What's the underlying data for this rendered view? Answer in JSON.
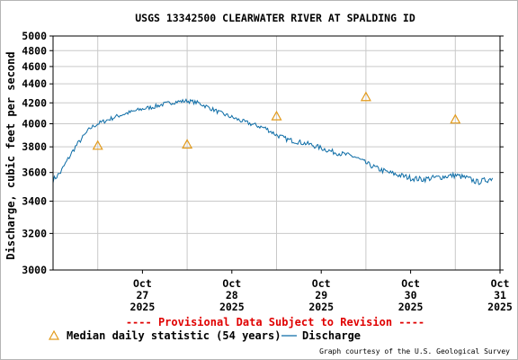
{
  "chart_data": {
    "type": "line",
    "title": "USGS 13342500 CLEARWATER RIVER AT SPALDING ID",
    "ylabel": "Discharge, cubic feet per second",
    "xlabel": "",
    "ylim": [
      3000,
      5000
    ],
    "y_ticks": [
      3000,
      3200,
      3400,
      3600,
      3800,
      4000,
      4200,
      4400,
      4600,
      4800,
      5000
    ],
    "y_ticks_labeled": [
      3000,
      3200,
      3400,
      3600,
      3800,
      4000,
      4200,
      4400,
      4600,
      4800,
      5000
    ],
    "y_ticks_dense": [
      3400,
      3600,
      3800,
      4000,
      4200,
      4400,
      4600,
      4800,
      5000
    ],
    "x_range": [
      "2025-10-26T12:00",
      "2025-10-31T12:00"
    ],
    "x_ticks": [
      {
        "date": "2025-10-27",
        "lines": [
          "Oct",
          "27",
          "2025"
        ]
      },
      {
        "date": "2025-10-28",
        "lines": [
          "Oct",
          "28",
          "2025"
        ]
      },
      {
        "date": "2025-10-29",
        "lines": [
          "Oct",
          "29",
          "2025"
        ]
      },
      {
        "date": "2025-10-30",
        "lines": [
          "Oct",
          "30",
          "2025"
        ]
      },
      {
        "date": "2025-10-31",
        "lines": [
          "Oct",
          "31",
          "2025"
        ]
      }
    ],
    "grid": true,
    "series": [
      {
        "name": "Discharge",
        "color": "#0c6ca6",
        "points": [
          [
            "2025-10-26T12:00",
            3545
          ],
          [
            "2025-10-26T14:00",
            3600
          ],
          [
            "2025-10-26T16:00",
            3700
          ],
          [
            "2025-10-26T18:00",
            3800
          ],
          [
            "2025-10-26T20:00",
            3880
          ],
          [
            "2025-10-26T22:00",
            3960
          ],
          [
            "2025-10-27T00:00",
            4000
          ],
          [
            "2025-10-27T03:00",
            4040
          ],
          [
            "2025-10-27T06:00",
            4080
          ],
          [
            "2025-10-27T09:00",
            4110
          ],
          [
            "2025-10-27T12:00",
            4140
          ],
          [
            "2025-10-27T15:00",
            4160
          ],
          [
            "2025-10-27T18:00",
            4190
          ],
          [
            "2025-10-27T21:00",
            4210
          ],
          [
            "2025-10-28T00:00",
            4220
          ],
          [
            "2025-10-28T03:00",
            4200
          ],
          [
            "2025-10-28T06:00",
            4150
          ],
          [
            "2025-10-28T09:00",
            4100
          ],
          [
            "2025-10-28T12:00",
            4060
          ],
          [
            "2025-10-28T15:00",
            4020
          ],
          [
            "2025-10-28T18:00",
            3990
          ],
          [
            "2025-10-28T21:00",
            3960
          ],
          [
            "2025-10-29T00:00",
            3900
          ],
          [
            "2025-10-29T03:00",
            3860
          ],
          [
            "2025-10-29T06:00",
            3840
          ],
          [
            "2025-10-29T09:00",
            3820
          ],
          [
            "2025-10-29T12:00",
            3790
          ],
          [
            "2025-10-29T15:00",
            3760
          ],
          [
            "2025-10-29T18:00",
            3740
          ],
          [
            "2025-10-29T21:00",
            3720
          ],
          [
            "2025-10-30T00:00",
            3670
          ],
          [
            "2025-10-30T03:00",
            3630
          ],
          [
            "2025-10-30T06:00",
            3600
          ],
          [
            "2025-10-30T09:00",
            3580
          ],
          [
            "2025-10-30T12:00",
            3560
          ],
          [
            "2025-10-30T15:00",
            3550
          ],
          [
            "2025-10-30T18:00",
            3560
          ],
          [
            "2025-10-30T21:00",
            3570
          ],
          [
            "2025-10-31T00:00",
            3580
          ],
          [
            "2025-10-31T03:00",
            3560
          ],
          [
            "2025-10-31T06:00",
            3530
          ],
          [
            "2025-10-31T09:00",
            3550
          ],
          [
            "2025-10-31T10:00",
            3560
          ]
        ]
      },
      {
        "name": "Median daily statistic (54 years)",
        "color": "#e29a1a",
        "marker": "triangle",
        "points": [
          [
            "2025-10-27T00:00",
            3810
          ],
          [
            "2025-10-28T00:00",
            3820
          ],
          [
            "2025-10-29T00:00",
            4070
          ],
          [
            "2025-10-30T00:00",
            4260
          ],
          [
            "2025-10-31T00:00",
            4040
          ]
        ]
      }
    ],
    "annotation": "---- Provisional Data Subject to Revision ----",
    "annotation_color": "#e00000",
    "legend": {
      "placement": "bottom",
      "median_label": "Median daily statistic (54 years)",
      "discharge_label": "Discharge"
    },
    "credit": "Graph courtesy of the U.S. Geological Survey"
  }
}
